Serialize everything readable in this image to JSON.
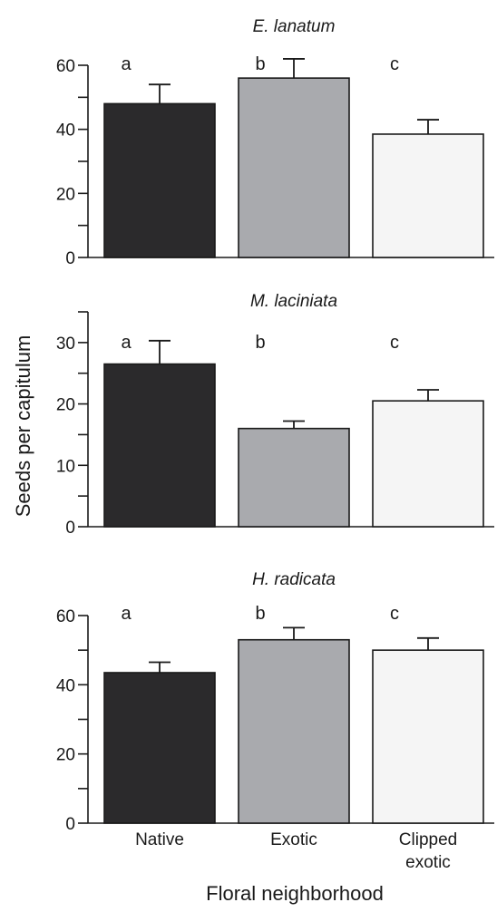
{
  "ylabel": "Seeds per capitulum",
  "xlabel": "Floral neighborhood",
  "category_labels": [
    [
      "Native"
    ],
    [
      "Exotic"
    ],
    [
      "Clipped",
      "exotic"
    ]
  ],
  "bar_colors": [
    "#2b2a2c",
    "#a9aaae",
    "#f5f5f5"
  ],
  "chart_data": [
    {
      "type": "bar",
      "title": "E. lanatum",
      "categories": [
        "Native",
        "Exotic",
        "Clipped exotic"
      ],
      "values": [
        48,
        56,
        38.5
      ],
      "errors": [
        6,
        6,
        4.5
      ],
      "letters": [
        "a",
        "b",
        "c"
      ],
      "ylim": [
        0,
        60
      ],
      "yticks_labeled": [
        0,
        20,
        40,
        60
      ],
      "yticks_minor": [
        10,
        30,
        50
      ]
    },
    {
      "type": "bar",
      "title": "M. laciniata",
      "categories": [
        "Native",
        "Exotic",
        "Clipped exotic"
      ],
      "values": [
        26.5,
        16,
        20.5
      ],
      "errors": [
        3.8,
        1.2,
        1.8
      ],
      "letters": [
        "a",
        "b",
        "c"
      ],
      "ylim": [
        0,
        35
      ],
      "yticks_labeled": [
        0,
        10,
        20,
        30
      ],
      "yticks_minor": [
        5,
        15,
        25,
        35
      ]
    },
    {
      "type": "bar",
      "title": "H. radicata",
      "categories": [
        "Native",
        "Exotic",
        "Clipped exotic"
      ],
      "values": [
        43.5,
        53,
        50
      ],
      "errors": [
        3,
        3.5,
        3.5
      ],
      "letters": [
        "a",
        "b",
        "c"
      ],
      "ylim": [
        0,
        60
      ],
      "yticks_labeled": [
        0,
        20,
        40,
        60
      ],
      "yticks_minor": [
        10,
        30,
        50
      ]
    }
  ]
}
